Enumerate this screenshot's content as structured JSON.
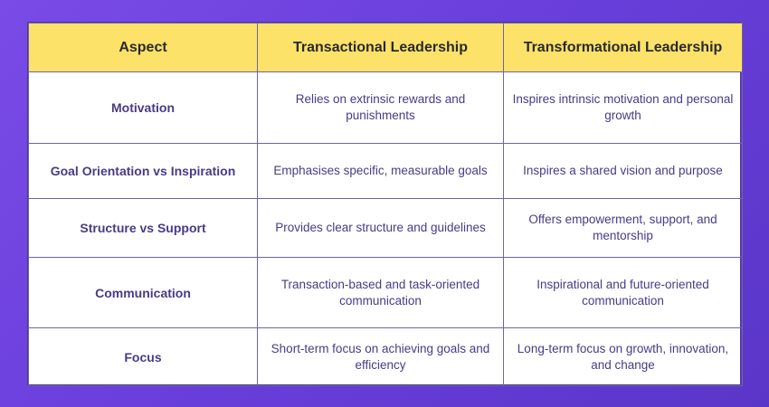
{
  "table": {
    "headers": [
      "Aspect",
      "Transactional Leadership",
      "Transformational Leadership"
    ],
    "rows": [
      {
        "aspect": "Motivation",
        "transactional": "Relies on extrinsic rewards and punishments",
        "transformational": "Inspires intrinsic motivation and personal growth"
      },
      {
        "aspect": "Goal Orientation vs Inspiration",
        "transactional": "Emphasises specific, measurable goals",
        "transformational": "Inspires a shared vision and purpose"
      },
      {
        "aspect": "Structure vs Support",
        "transactional": "Provides clear structure and guidelines",
        "transformational": "Offers empowerment, support, and mentorship"
      },
      {
        "aspect": "Communication",
        "transactional": "Transaction-based and task-oriented communication",
        "transformational": "Inspirational and future-oriented communication"
      },
      {
        "aspect": "Focus",
        "transactional": "Short-term focus on achieving goals and efficiency",
        "transformational": "Long-term focus on growth, innovation, and change"
      }
    ]
  },
  "colors": {
    "header_bg": "#fde26a",
    "text": "#4a3a86",
    "background": "#6a3fdc"
  }
}
